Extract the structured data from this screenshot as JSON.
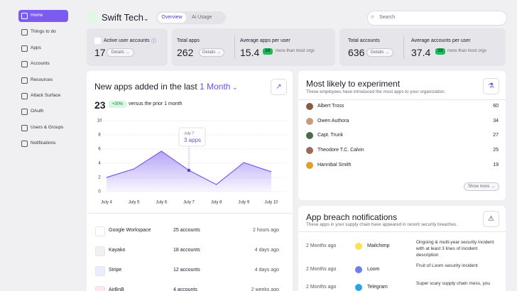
{
  "sidebar": {
    "items": [
      "Home",
      "Things to do",
      "Apps",
      "Accounts",
      "Resources",
      "Attack Surface",
      "OAuth",
      "Users & Groups",
      "Notifications"
    ]
  },
  "header": {
    "org": "Swift Tech",
    "tabs": [
      "Overview",
      "Ai Usage"
    ],
    "search": "Search"
  },
  "stats": [
    {
      "label": "Active user accounts",
      "value": "17",
      "button": "Details"
    },
    {
      "label": "Total apps",
      "value": "262",
      "button": "Details",
      "avg_label": "Average apps per user",
      "avg_value": "15.4",
      "badge": "2X",
      "note": "more than most orgs"
    },
    {
      "label": "Total accounts",
      "value": "636",
      "button": "Details",
      "avg_label": "Average accounts per user",
      "avg_value": "37.4",
      "badge": "2X",
      "note": "more than most orgs"
    }
  ],
  "new_apps": {
    "title": "New apps added in the last",
    "period": "1 Month",
    "total": "23",
    "change": "+30%",
    "change_note": "versus the prior 1 month",
    "chart": {
      "type": "area",
      "categories": [
        "July 4",
        "July 5",
        "July 6",
        "July 7",
        "July 8",
        "July 9",
        "July 10"
      ],
      "values": [
        2,
        3.2,
        5.7,
        3,
        1,
        4.1,
        2.8
      ],
      "color": "#7c5cf0",
      "ylim": [
        0,
        10
      ],
      "yticks": [
        0,
        2,
        4,
        6,
        8,
        10
      ],
      "grid": true,
      "tooltip": {
        "label": "3 apps"
      }
    },
    "apps": [
      [
        "Google Workspace",
        "25 accounts",
        "2 hours ago"
      ],
      [
        "Kayako",
        "18 accounts",
        "4 days ago"
      ],
      [
        "Stripe",
        "12 accounts",
        "4 days ago"
      ],
      [
        "AirBnB",
        "4 accounts",
        "2 weeks ago"
      ]
    ]
  },
  "experiment": {
    "title": "Most likely to experiment",
    "subtitle": "These employees have introduced the most apps to your organization.",
    "people": [
      [
        "Albert Tross",
        "60"
      ],
      [
        "Owen Authora",
        "34"
      ],
      [
        "Capt. Trunk",
        "27"
      ],
      [
        "Theodore T.C. Calvin",
        "25"
      ],
      [
        "Hannibal Smith",
        "19"
      ]
    ],
    "button": "Show more"
  },
  "breaches": {
    "title": "App breach notifications",
    "subtitle": "These apps in your supply chain have appeared in recent security breaches.",
    "rows": [
      [
        "2 Months ago",
        "Mailchimp",
        "Ongoing & multi-year security incident with at least 3 lines of incident description"
      ],
      [
        "2 Months ago",
        "Loom",
        "Fruit of Loom security incident"
      ],
      [
        "2 Months ago",
        "Telegram",
        "Super scary supply chain mess, you"
      ]
    ]
  }
}
